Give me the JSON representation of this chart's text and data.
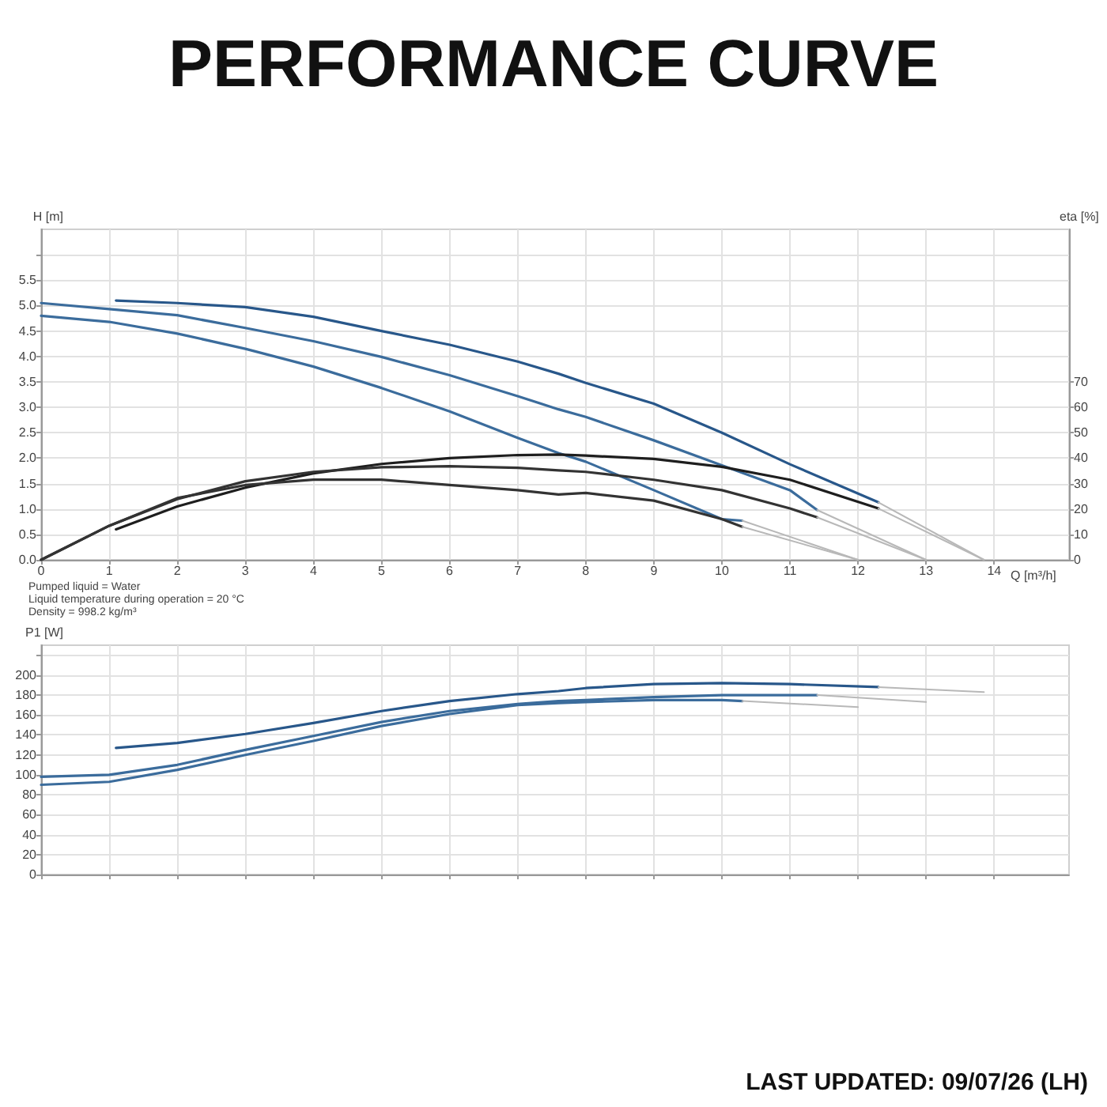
{
  "chart_data": [
    {
      "type": "line",
      "title": "PERFORMANCE CURVE",
      "xlabel": "Q [m³/h]",
      "ylabel": "H [m]",
      "y2label": "eta [%]",
      "xlim": [
        0,
        15.1
      ],
      "xticks": [
        0,
        1,
        2,
        3,
        4,
        5,
        6,
        7,
        8,
        9,
        10,
        11,
        12,
        13,
        14
      ],
      "ylim": [
        0,
        6.5
      ],
      "yticks": [
        {
          "value": 0,
          "label": "0.0"
        },
        0.5,
        {
          "value": 1,
          "label": "1.0"
        },
        1.5,
        {
          "value": 2,
          "label": "2.0"
        },
        2.5,
        {
          "value": 3,
          "label": "3.0"
        },
        3.5,
        {
          "value": 4,
          "label": "4.0"
        },
        4.5,
        {
          "value": 5,
          "label": "5.0"
        },
        5.5,
        {
          "value": 6,
          "label": null
        }
      ],
      "y2lim": [
        0,
        130
      ],
      "y2ticks": [
        0,
        10,
        20,
        30,
        40,
        50,
        60,
        70
      ],
      "grid": true,
      "marker": "none",
      "line_style": "solid",
      "series": [
        {
          "color": "#28578a",
          "x": [
            1.1,
            2,
            3,
            4,
            5,
            6,
            7,
            7.6,
            8,
            9,
            10,
            11,
            12.3
          ],
          "values": [
            5.1,
            5.05,
            4.97,
            4.78,
            4.5,
            4.23,
            3.9,
            3.66,
            3.48,
            3.07,
            2.5,
            1.88,
            1.13
          ]
        },
        {
          "color": "#3b6c9c",
          "x": [
            0,
            1,
            2,
            3,
            4,
            5,
            6,
            7,
            7.6,
            8,
            9,
            10,
            11,
            11.4
          ],
          "values": [
            5.05,
            4.93,
            4.81,
            4.56,
            4.3,
            3.99,
            3.63,
            3.22,
            2.96,
            2.81,
            2.35,
            1.86,
            1.37,
            0.98
          ]
        },
        {
          "color": "#3b6c9c",
          "x": [
            0,
            1,
            2,
            3,
            4,
            5,
            6,
            7,
            7.6,
            8,
            9,
            10,
            10.3
          ],
          "values": [
            4.8,
            4.68,
            4.45,
            4.15,
            3.8,
            3.38,
            2.92,
            2.4,
            2.1,
            1.93,
            1.37,
            0.8,
            0.77
          ]
        },
        {
          "color": "#b8b8b8",
          "x": [
            12.3,
            13.85
          ],
          "values": [
            1.13,
            0
          ]
        },
        {
          "color": "#b8b8b8",
          "x": [
            11.4,
            13
          ],
          "values": [
            0.98,
            0
          ]
        },
        {
          "color": "#b8b8b8",
          "x": [
            10.3,
            12
          ],
          "values": [
            0.77,
            0
          ]
        },
        {
          "color": "#1e1e1e",
          "axis": "y2",
          "x": [
            1.1,
            2,
            3,
            4,
            5,
            6,
            7,
            7.6,
            8,
            9,
            10,
            11,
            12.3
          ],
          "values": [
            12,
            21,
            28.4,
            34,
            37.7,
            40,
            41.2,
            41.4,
            41,
            39.7,
            36.6,
            31.5,
            20.2
          ]
        },
        {
          "color": "#333333",
          "axis": "y2",
          "x": [
            0,
            1,
            2,
            3,
            4,
            5,
            6,
            7,
            7.6,
            8,
            9,
            10,
            11,
            11.4
          ],
          "values": [
            0,
            13.4,
            23.9,
            30.9,
            34.6,
            36.4,
            36.8,
            36.2,
            35.2,
            34.6,
            31.5,
            27.4,
            20.2,
            16.7
          ]
        },
        {
          "color": "#333333",
          "axis": "y2",
          "x": [
            0,
            1,
            2,
            3,
            4,
            5,
            6,
            7,
            7.6,
            8,
            9,
            10,
            10.3
          ],
          "values": [
            0,
            13.4,
            24.3,
            29.4,
            31.5,
            31.5,
            29.4,
            27.4,
            25.7,
            26.3,
            23.3,
            16,
            13
          ]
        },
        {
          "color": "#b8b8b8",
          "axis": "y2",
          "x": [
            12.3,
            13.85
          ],
          "values": [
            20.2,
            0
          ]
        },
        {
          "color": "#b8b8b8",
          "axis": "y2",
          "x": [
            11.4,
            13
          ],
          "values": [
            16.7,
            0
          ]
        },
        {
          "color": "#b8b8b8",
          "axis": "y2",
          "x": [
            10.3,
            12
          ],
          "values": [
            13,
            0
          ]
        }
      ]
    },
    {
      "type": "line",
      "ylabel": "P1 [W]",
      "xlim": [
        0,
        15.1
      ],
      "xticks": [
        0,
        1,
        2,
        3,
        4,
        5,
        6,
        7,
        8,
        9,
        10,
        11,
        12,
        13,
        14
      ],
      "ylim": [
        0,
        230
      ],
      "yticks": [
        0,
        20,
        40,
        60,
        80,
        100,
        120,
        140,
        160,
        180,
        200,
        {
          "value": 220,
          "label": null
        }
      ],
      "tick_labels": "y",
      "grid": true,
      "marker": "none",
      "line_style": "solid",
      "annotations": [
        "Pumped liquid = Water",
        "Liquid temperature during operation = 20 °C",
        "Density = 998.2 kg/m³",
        "LAST UPDATED: 09/07/26 (LH)"
      ],
      "series": [
        {
          "color": "#28578a",
          "x": [
            1.1,
            2,
            3,
            4,
            5,
            6,
            7,
            7.6,
            8,
            9,
            10,
            11,
            12.3
          ],
          "values": [
            127,
            132,
            141,
            152,
            164,
            174,
            181,
            184,
            187,
            191,
            192,
            191,
            188
          ]
        },
        {
          "color": "#3b6c9c",
          "x": [
            0,
            1,
            2,
            3,
            4,
            5,
            6,
            7,
            7.6,
            8,
            9,
            10,
            11,
            11.4
          ],
          "values": [
            98,
            100,
            110,
            125,
            139,
            153,
            164,
            171,
            174,
            175,
            178,
            180,
            180,
            180
          ]
        },
        {
          "color": "#3b6c9c",
          "x": [
            0,
            1,
            2,
            3,
            4,
            5,
            6,
            7,
            7.6,
            8,
            9,
            10,
            10.3
          ],
          "values": [
            90,
            93,
            105,
            120,
            134,
            149,
            161,
            170,
            172,
            173,
            175,
            175,
            174
          ]
        },
        {
          "color": "#b8b8b8",
          "x": [
            12.3,
            13.85
          ],
          "values": [
            188,
            183
          ]
        },
        {
          "color": "#b8b8b8",
          "x": [
            11.4,
            13
          ],
          "values": [
            180,
            173
          ]
        },
        {
          "color": "#b8b8b8",
          "x": [
            10.3,
            12
          ],
          "values": [
            174,
            168
          ]
        }
      ]
    }
  ]
}
